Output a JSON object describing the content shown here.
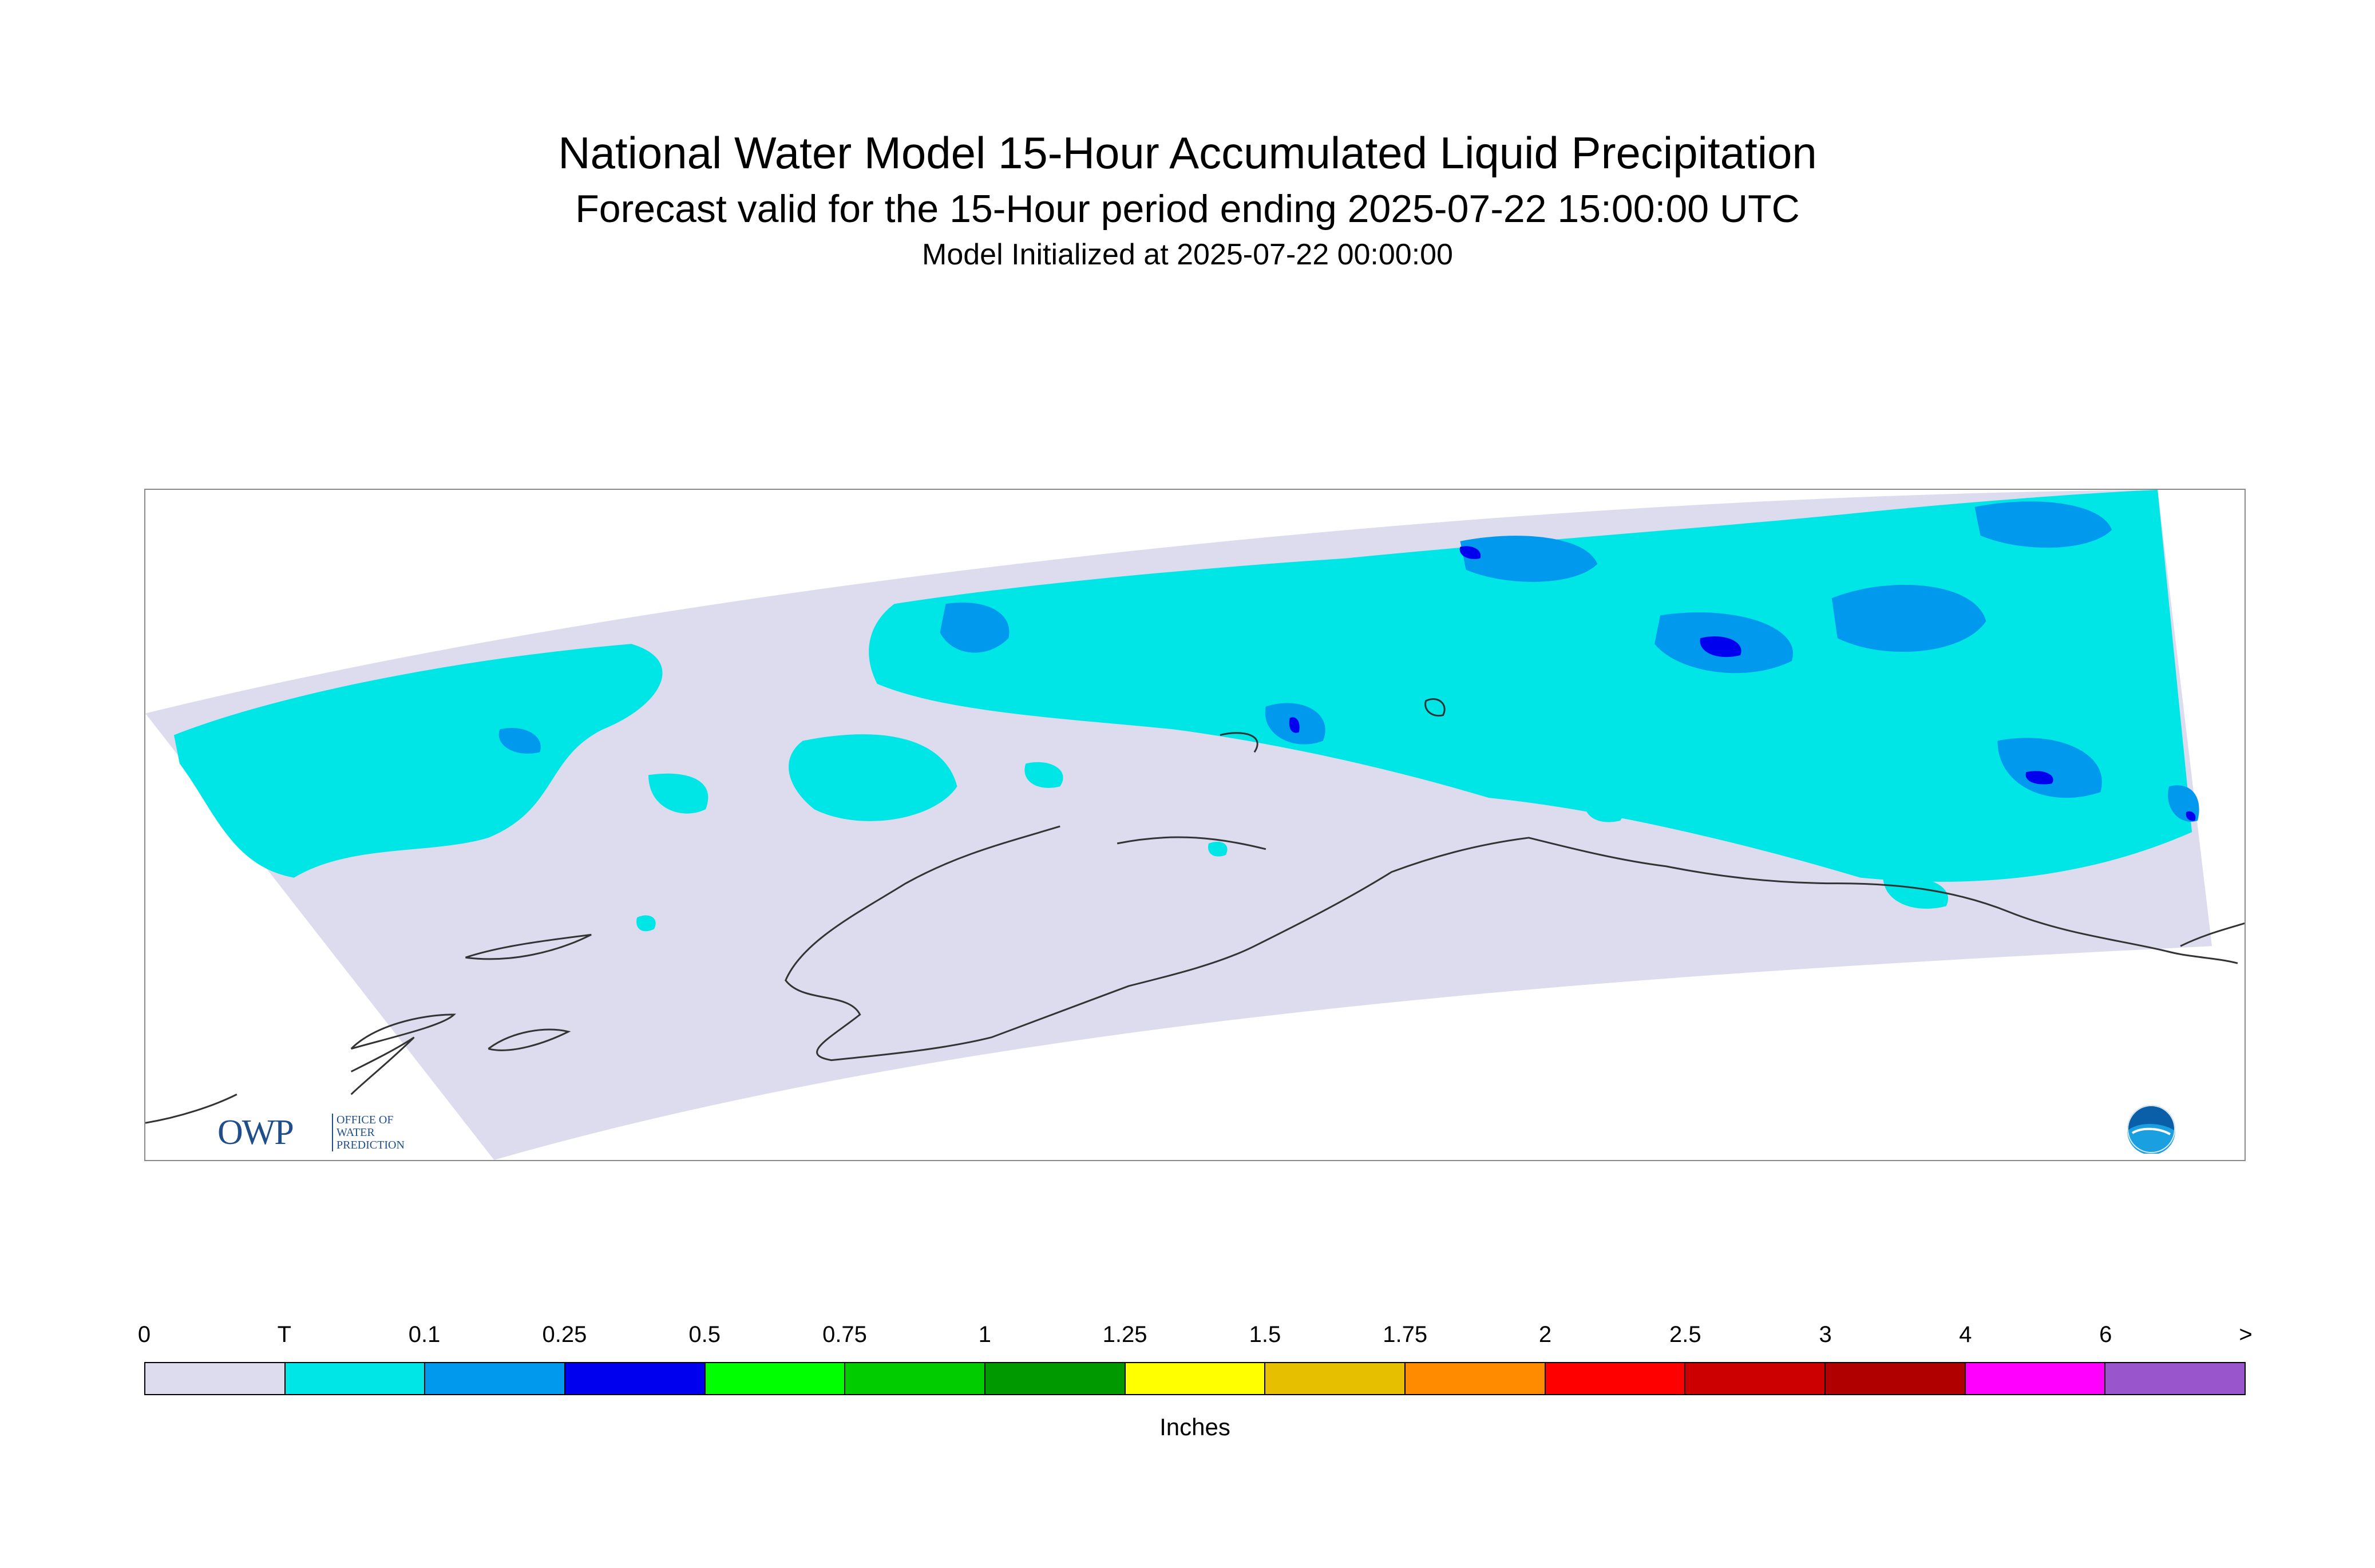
{
  "header": {
    "title": "National Water Model 15-Hour Accumulated Liquid Precipitation",
    "subtitle": "Forecast valid for the 15-Hour period ending 2025-07-22 15:00:00 UTC",
    "initialized": "Model Initialized at 2025-07-22 00:00:00"
  },
  "map": {
    "region": "Alaska",
    "background_color": "#dcdcee",
    "colors": {
      "trace": "#00e5e5",
      "light": "#0099ee",
      "moderate": "#0000ee",
      "coast": "#333333"
    }
  },
  "logos": {
    "owp_mark": "OWP",
    "owp_sub": [
      "OFFICE OF",
      "WATER",
      "PREDICTION"
    ],
    "noaa_icon": "noaa-logo-icon"
  },
  "legend": {
    "labels": [
      "0",
      "T",
      "0.1",
      "0.25",
      "0.5",
      "0.75",
      "1",
      "1.25",
      "1.5",
      "1.75",
      "2",
      "2.5",
      "3",
      "4",
      "6",
      ">"
    ],
    "colors": [
      "#dcdcee",
      "#00e5e5",
      "#0099ee",
      "#0000ee",
      "#00ff00",
      "#00cc00",
      "#009900",
      "#ffff00",
      "#e6c000",
      "#ff8c00",
      "#ff0000",
      "#cc0000",
      "#b00000",
      "#ff00ff",
      "#9955cc"
    ],
    "units": "Inches"
  }
}
